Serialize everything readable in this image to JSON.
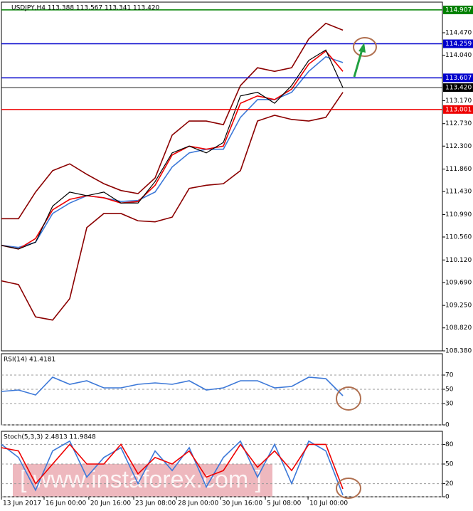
{
  "chart_data": [
    {
      "type": "line",
      "title": "USDJPY,H4  113.388 113.567 113.341 113.420",
      "x": [
        0,
        1,
        2,
        3,
        4,
        5,
        6,
        7,
        8,
        9,
        10,
        11,
        12,
        13,
        14,
        15,
        16,
        17,
        18,
        19,
        20
      ],
      "xlim": [
        0,
        25.83
      ],
      "ylim": [
        108.38,
        115.056
      ],
      "yticks": [
        {
          "value": 114.47,
          "label": "114.470"
        },
        {
          "value": 114.04,
          "label": "114.040"
        },
        {
          "value": 113.17,
          "label": "113.170"
        },
        {
          "value": 112.73,
          "label": "112.730"
        },
        {
          "value": 112.3,
          "label": "112.300"
        },
        {
          "value": 111.86,
          "label": "111.860"
        },
        {
          "value": 111.43,
          "label": "111.430"
        },
        {
          "value": 110.99,
          "label": "110.990"
        },
        {
          "value": 110.56,
          "label": "110.560"
        },
        {
          "value": 110.12,
          "label": "110.120"
        },
        {
          "value": 109.69,
          "label": "109.690"
        },
        {
          "value": 109.25,
          "label": "109.250"
        },
        {
          "value": 108.82,
          "label": "108.820"
        },
        {
          "value": 108.38,
          "label": "108.380"
        }
      ],
      "series": [
        {
          "color": "#8b0000",
          "values": [
            110.91,
            110.91,
            111.42,
            111.83,
            111.96,
            111.76,
            111.58,
            111.45,
            111.39,
            111.69,
            112.51,
            112.78,
            112.78,
            112.71,
            113.46,
            113.8,
            113.73,
            113.8,
            114.35,
            114.65,
            114.52
          ]
        },
        {
          "color": "#8b0000",
          "values": [
            109.72,
            109.65,
            109.03,
            108.97,
            109.38,
            110.74,
            111.01,
            111.01,
            110.87,
            110.85,
            110.94,
            111.49,
            111.55,
            111.58,
            111.83,
            112.78,
            112.89,
            112.81,
            112.78,
            112.85,
            113.33
          ]
        },
        {
          "color": "#3c78d8",
          "values": [
            110.4,
            110.36,
            110.46,
            111.01,
            111.21,
            111.35,
            111.31,
            111.24,
            111.26,
            111.42,
            111.9,
            112.17,
            112.24,
            112.24,
            112.85,
            113.19,
            113.19,
            113.33,
            113.73,
            114.01,
            113.9
          ]
        },
        {
          "color": "#ee0000",
          "values": [
            110.4,
            110.33,
            110.53,
            111.08,
            111.28,
            111.35,
            111.31,
            111.21,
            111.24,
            111.55,
            112.13,
            112.3,
            112.24,
            112.3,
            113.12,
            113.26,
            113.19,
            113.39,
            113.87,
            114.12,
            113.73
          ]
        },
        {
          "color": "#000000",
          "values": [
            110.4,
            110.33,
            110.46,
            111.15,
            111.42,
            111.35,
            111.42,
            111.21,
            111.21,
            111.62,
            112.17,
            112.3,
            112.17,
            112.37,
            113.26,
            113.33,
            113.12,
            113.46,
            113.94,
            114.14,
            113.42
          ]
        }
      ],
      "levels": [
        {
          "value": 114.907,
          "color": "#008000"
        },
        {
          "value": 114.259,
          "color": "#0000cc"
        },
        {
          "value": 113.607,
          "color": "#0000cc"
        },
        {
          "value": 113.42,
          "label": "113.420",
          "color": "#000000"
        },
        {
          "value": 113.001,
          "color": "#ee0000"
        }
      ]
    },
    {
      "type": "line",
      "title": "RSI(14) 41.4181",
      "x": [
        0,
        1,
        2,
        3,
        4,
        5,
        6,
        7,
        8,
        9,
        10,
        11,
        12,
        13,
        14,
        15,
        16,
        17,
        18,
        19,
        20
      ],
      "xlim": [
        0,
        25.83
      ],
      "ylim": [
        0,
        100
      ],
      "yticks": [
        0,
        30,
        50,
        70
      ],
      "grid": true,
      "series": [
        {
          "color": "#3c78d8",
          "values": [
            47,
            49,
            42,
            67,
            57,
            62,
            52,
            52,
            57,
            59,
            57,
            62,
            49,
            52,
            62,
            62,
            52,
            54,
            67,
            65,
            41
          ]
        }
      ]
    },
    {
      "type": "line",
      "title": "Stoch(5,3,3) 2.4813 11.9848",
      "x": [
        0,
        1,
        2,
        3,
        4,
        5,
        6,
        7,
        8,
        9,
        10,
        11,
        12,
        13,
        14,
        15,
        16,
        17,
        18,
        19,
        20
      ],
      "xlim": [
        0,
        25.83
      ],
      "ylim": [
        0,
        100
      ],
      "yticks": [
        0,
        20,
        50,
        80
      ],
      "grid": true,
      "xticks": [
        {
          "value": 0,
          "label": "13 Jun 2017"
        },
        {
          "value": 2.5,
          "label": "16 Jun 00:00"
        },
        {
          "value": 5.12,
          "label": "20 Jun 16:00"
        },
        {
          "value": 7.75,
          "label": "23 Jun 08:00"
        },
        {
          "value": 10.25,
          "label": "28 Jun 00:00"
        },
        {
          "value": 12.83,
          "label": "30 Jun 16:00"
        },
        {
          "value": 15.46,
          "label": "5 Jul 08:00"
        },
        {
          "value": 17.96,
          "label": "10 Jul 00:00"
        }
      ],
      "series": [
        {
          "color": "#3c78d8",
          "values": [
            80,
            60,
            10,
            70,
            85,
            30,
            60,
            75,
            20,
            70,
            40,
            75,
            15,
            60,
            85,
            30,
            80,
            20,
            85,
            70,
            2.5
          ]
        },
        {
          "color": "#ee0000",
          "values": [
            75,
            70,
            20,
            50,
            80,
            50,
            50,
            80,
            35,
            60,
            50,
            70,
            30,
            40,
            80,
            45,
            70,
            40,
            80,
            80,
            12
          ]
        }
      ]
    }
  ],
  "watermark": "[ www.instaforex.com ]"
}
